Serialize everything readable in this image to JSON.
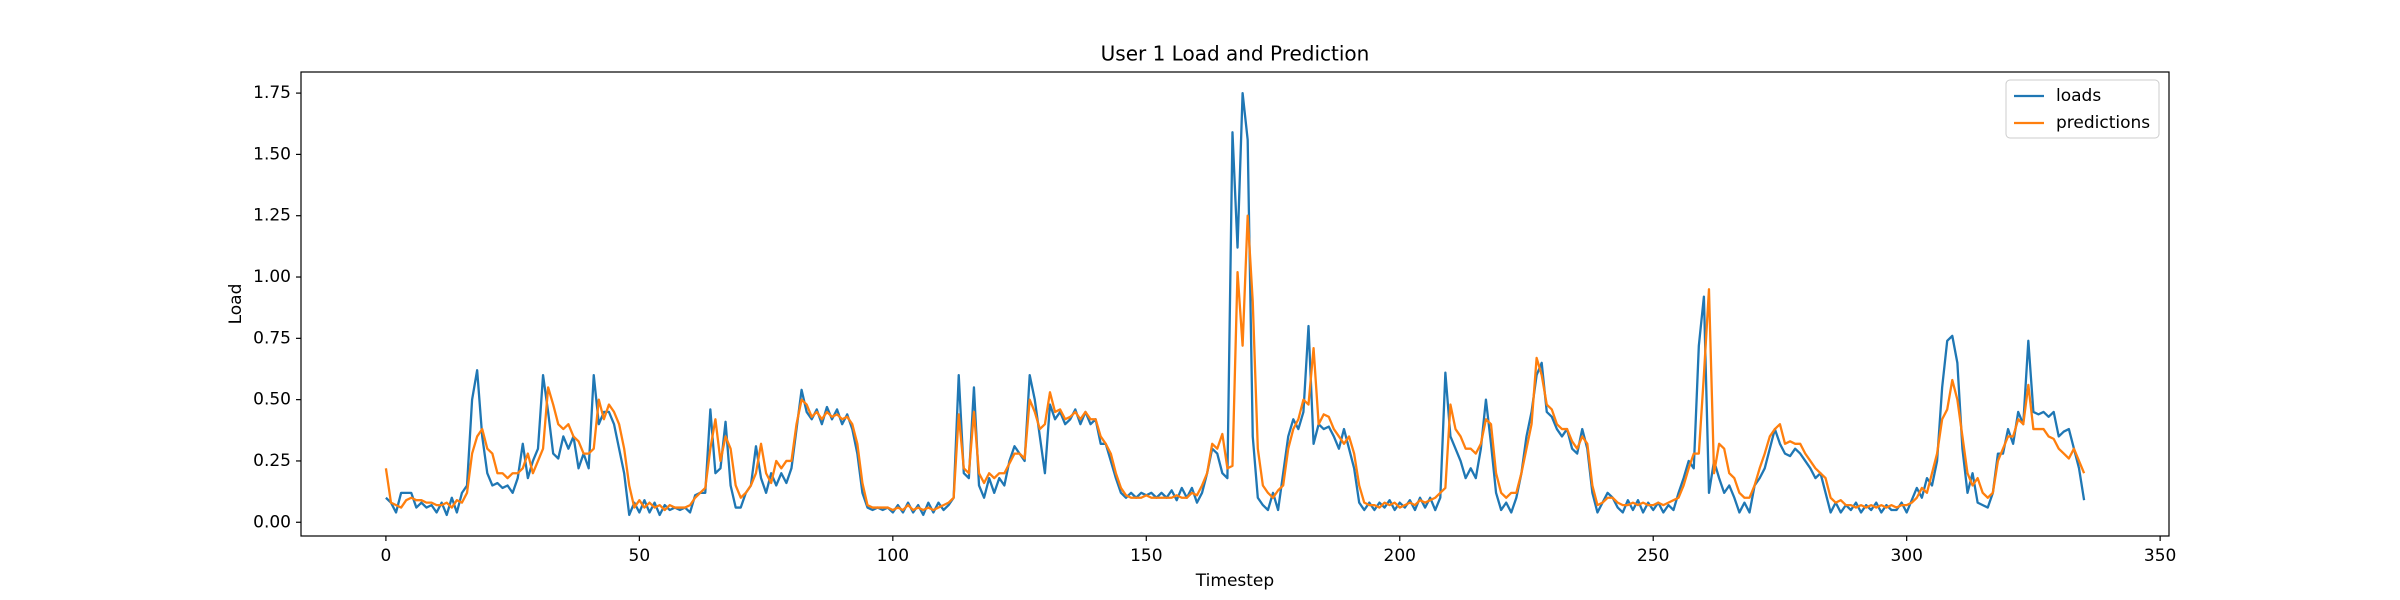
{
  "chart_data": {
    "type": "line",
    "title": "User 1 Load and Prediction",
    "x_label": "Timestep",
    "y_label": "Load",
    "xlim": [
      -16.75,
      351.75
    ],
    "ylim": [
      -0.056,
      1.836
    ],
    "xticks": [
      0,
      50,
      100,
      150,
      200,
      250,
      300,
      350
    ],
    "yticks": [
      {
        "value": 0,
        "label": "0.00"
      },
      {
        "value": 0.25,
        "label": "0.25"
      },
      {
        "value": 0.5,
        "label": "0.50"
      },
      {
        "value": 0.75,
        "label": "0.75"
      },
      {
        "value": 1,
        "label": "1.00"
      },
      {
        "value": 1.25,
        "label": "1.25"
      },
      {
        "value": 1.5,
        "label": "1.50"
      },
      {
        "value": 1.75,
        "label": "1.75"
      }
    ],
    "grid": false,
    "legend": "upper right",
    "x": [
      0,
      1,
      2,
      3,
      4,
      5,
      6,
      7,
      8,
      9,
      10,
      11,
      12,
      13,
      14,
      15,
      16,
      17,
      18,
      19,
      20,
      21,
      22,
      23,
      24,
      25,
      26,
      27,
      28,
      29,
      30,
      31,
      32,
      33,
      34,
      35,
      36,
      37,
      38,
      39,
      40,
      41,
      42,
      43,
      44,
      45,
      46,
      47,
      48,
      49,
      50,
      51,
      52,
      53,
      54,
      55,
      56,
      57,
      58,
      59,
      60,
      61,
      62,
      63,
      64,
      65,
      66,
      67,
      68,
      69,
      70,
      71,
      72,
      73,
      74,
      75,
      76,
      77,
      78,
      79,
      80,
      81,
      82,
      83,
      84,
      85,
      86,
      87,
      88,
      89,
      90,
      91,
      92,
      93,
      94,
      95,
      96,
      97,
      98,
      99,
      100,
      101,
      102,
      103,
      104,
      105,
      106,
      107,
      108,
      109,
      110,
      111,
      112,
      113,
      114,
      115,
      116,
      117,
      118,
      119,
      120,
      121,
      122,
      123,
      124,
      125,
      126,
      127,
      128,
      129,
      130,
      131,
      132,
      133,
      134,
      135,
      136,
      137,
      138,
      139,
      140,
      141,
      142,
      143,
      144,
      145,
      146,
      147,
      148,
      149,
      150,
      151,
      152,
      153,
      154,
      155,
      156,
      157,
      158,
      159,
      160,
      161,
      162,
      163,
      164,
      165,
      166,
      167,
      168,
      169,
      170,
      171,
      172,
      173,
      174,
      175,
      176,
      177,
      178,
      179,
      180,
      181,
      182,
      183,
      184,
      185,
      186,
      187,
      188,
      189,
      190,
      191,
      192,
      193,
      194,
      195,
      196,
      197,
      198,
      199,
      200,
      201,
      202,
      203,
      204,
      205,
      206,
      207,
      208,
      209,
      210,
      211,
      212,
      213,
      214,
      215,
      216,
      217,
      218,
      219,
      220,
      221,
      222,
      223,
      224,
      225,
      226,
      227,
      228,
      229,
      230,
      231,
      232,
      233,
      234,
      235,
      236,
      237,
      238,
      239,
      240,
      241,
      242,
      243,
      244,
      245,
      246,
      247,
      248,
      249,
      250,
      251,
      252,
      253,
      254,
      255,
      256,
      257,
      258,
      259,
      260,
      261,
      262,
      263,
      264,
      265,
      266,
      267,
      268,
      269,
      270,
      271,
      272,
      273,
      274,
      275,
      276,
      277,
      278,
      279,
      280,
      281,
      282,
      283,
      284,
      285,
      286,
      287,
      288,
      289,
      290,
      291,
      292,
      293,
      294,
      295,
      296,
      297,
      298,
      299,
      300,
      301,
      302,
      303,
      304,
      305,
      306,
      307,
      308,
      309,
      310,
      311,
      312,
      313,
      314,
      315,
      316,
      317,
      318,
      319,
      320,
      321,
      322,
      323,
      324,
      325,
      326,
      327,
      328,
      329,
      330,
      331,
      332,
      333,
      334,
      335
    ],
    "series": [
      {
        "name": "loads",
        "color": "#1f77b4",
        "values": [
          0.1,
          0.08,
          0.04,
          0.12,
          0.12,
          0.12,
          0.06,
          0.08,
          0.06,
          0.07,
          0.04,
          0.08,
          0.03,
          0.1,
          0.04,
          0.12,
          0.15,
          0.5,
          0.62,
          0.35,
          0.2,
          0.15,
          0.16,
          0.14,
          0.15,
          0.12,
          0.18,
          0.32,
          0.18,
          0.25,
          0.3,
          0.6,
          0.45,
          0.28,
          0.26,
          0.35,
          0.3,
          0.35,
          0.22,
          0.28,
          0.22,
          0.6,
          0.4,
          0.45,
          0.45,
          0.4,
          0.3,
          0.2,
          0.03,
          0.08,
          0.04,
          0.09,
          0.04,
          0.08,
          0.03,
          0.07,
          0.05,
          0.06,
          0.05,
          0.06,
          0.04,
          0.11,
          0.12,
          0.12,
          0.46,
          0.2,
          0.22,
          0.41,
          0.15,
          0.06,
          0.06,
          0.12,
          0.15,
          0.31,
          0.18,
          0.12,
          0.2,
          0.15,
          0.2,
          0.16,
          0.22,
          0.38,
          0.54,
          0.45,
          0.42,
          0.46,
          0.4,
          0.47,
          0.42,
          0.46,
          0.4,
          0.44,
          0.38,
          0.28,
          0.12,
          0.06,
          0.05,
          0.06,
          0.05,
          0.06,
          0.04,
          0.07,
          0.04,
          0.08,
          0.04,
          0.07,
          0.03,
          0.08,
          0.04,
          0.08,
          0.05,
          0.07,
          0.1,
          0.6,
          0.2,
          0.18,
          0.55,
          0.15,
          0.1,
          0.18,
          0.12,
          0.18,
          0.15,
          0.25,
          0.31,
          0.28,
          0.25,
          0.6,
          0.5,
          0.35,
          0.2,
          0.48,
          0.42,
          0.45,
          0.4,
          0.42,
          0.46,
          0.4,
          0.45,
          0.4,
          0.42,
          0.32,
          0.32,
          0.25,
          0.18,
          0.12,
          0.1,
          0.12,
          0.1,
          0.12,
          0.11,
          0.12,
          0.1,
          0.12,
          0.1,
          0.13,
          0.09,
          0.14,
          0.1,
          0.14,
          0.08,
          0.12,
          0.2,
          0.3,
          0.28,
          0.2,
          0.18,
          1.59,
          1.12,
          1.75,
          1.56,
          0.35,
          0.1,
          0.07,
          0.05,
          0.12,
          0.05,
          0.2,
          0.35,
          0.42,
          0.38,
          0.45,
          0.8,
          0.32,
          0.4,
          0.38,
          0.39,
          0.35,
          0.3,
          0.38,
          0.3,
          0.22,
          0.08,
          0.05,
          0.08,
          0.05,
          0.08,
          0.06,
          0.09,
          0.05,
          0.08,
          0.06,
          0.09,
          0.05,
          0.1,
          0.06,
          0.1,
          0.05,
          0.1,
          0.61,
          0.35,
          0.3,
          0.25,
          0.18,
          0.22,
          0.18,
          0.3,
          0.5,
          0.32,
          0.12,
          0.05,
          0.08,
          0.04,
          0.1,
          0.2,
          0.35,
          0.45,
          0.6,
          0.65,
          0.45,
          0.43,
          0.38,
          0.35,
          0.38,
          0.3,
          0.28,
          0.38,
          0.3,
          0.12,
          0.04,
          0.08,
          0.12,
          0.1,
          0.06,
          0.04,
          0.09,
          0.05,
          0.09,
          0.04,
          0.08,
          0.05,
          0.08,
          0.04,
          0.07,
          0.05,
          0.12,
          0.18,
          0.25,
          0.22,
          0.72,
          0.92,
          0.12,
          0.25,
          0.18,
          0.12,
          0.15,
          0.1,
          0.04,
          0.08,
          0.04,
          0.15,
          0.18,
          0.22,
          0.3,
          0.38,
          0.32,
          0.28,
          0.27,
          0.3,
          0.28,
          0.25,
          0.22,
          0.18,
          0.2,
          0.12,
          0.04,
          0.08,
          0.04,
          0.07,
          0.05,
          0.08,
          0.04,
          0.07,
          0.05,
          0.08,
          0.04,
          0.07,
          0.05,
          0.05,
          0.08,
          0.04,
          0.09,
          0.14,
          0.1,
          0.18,
          0.15,
          0.25,
          0.55,
          0.74,
          0.76,
          0.65,
          0.3,
          0.12,
          0.2,
          0.08,
          0.07,
          0.06,
          0.12,
          0.28,
          0.28,
          0.38,
          0.32,
          0.45,
          0.4,
          0.74,
          0.45,
          0.44,
          0.45,
          0.43,
          0.45,
          0.35,
          0.37,
          0.38,
          0.3,
          0.22,
          0.09
        ]
      },
      {
        "name": "predictions",
        "color": "#ff7f0e",
        "values": [
          0.22,
          0.08,
          0.07,
          0.06,
          0.09,
          0.1,
          0.09,
          0.09,
          0.08,
          0.08,
          0.07,
          0.07,
          0.08,
          0.06,
          0.09,
          0.08,
          0.12,
          0.28,
          0.35,
          0.38,
          0.3,
          0.28,
          0.2,
          0.2,
          0.18,
          0.2,
          0.2,
          0.22,
          0.28,
          0.2,
          0.25,
          0.3,
          0.55,
          0.48,
          0.4,
          0.38,
          0.4,
          0.35,
          0.33,
          0.28,
          0.28,
          0.3,
          0.5,
          0.42,
          0.48,
          0.45,
          0.4,
          0.3,
          0.15,
          0.06,
          0.09,
          0.06,
          0.08,
          0.06,
          0.07,
          0.05,
          0.07,
          0.06,
          0.06,
          0.06,
          0.07,
          0.1,
          0.12,
          0.14,
          0.3,
          0.42,
          0.25,
          0.35,
          0.3,
          0.15,
          0.1,
          0.12,
          0.15,
          0.2,
          0.32,
          0.2,
          0.16,
          0.25,
          0.22,
          0.25,
          0.25,
          0.4,
          0.5,
          0.48,
          0.43,
          0.45,
          0.42,
          0.45,
          0.43,
          0.44,
          0.42,
          0.43,
          0.4,
          0.32,
          0.16,
          0.07,
          0.06,
          0.06,
          0.06,
          0.06,
          0.05,
          0.06,
          0.05,
          0.07,
          0.05,
          0.06,
          0.05,
          0.06,
          0.05,
          0.06,
          0.07,
          0.08,
          0.1,
          0.44,
          0.22,
          0.2,
          0.45,
          0.2,
          0.16,
          0.2,
          0.18,
          0.2,
          0.2,
          0.24,
          0.28,
          0.28,
          0.26,
          0.5,
          0.45,
          0.38,
          0.4,
          0.53,
          0.45,
          0.46,
          0.42,
          0.43,
          0.45,
          0.42,
          0.45,
          0.42,
          0.42,
          0.35,
          0.32,
          0.28,
          0.2,
          0.14,
          0.11,
          0.1,
          0.1,
          0.1,
          0.11,
          0.1,
          0.1,
          0.1,
          0.1,
          0.1,
          0.11,
          0.1,
          0.1,
          0.12,
          0.11,
          0.15,
          0.2,
          0.32,
          0.3,
          0.36,
          0.22,
          0.23,
          1.02,
          0.72,
          1.25,
          0.9,
          0.3,
          0.15,
          0.12,
          0.1,
          0.13,
          0.15,
          0.3,
          0.38,
          0.42,
          0.5,
          0.48,
          0.71,
          0.4,
          0.44,
          0.43,
          0.38,
          0.35,
          0.32,
          0.35,
          0.28,
          0.15,
          0.08,
          0.07,
          0.07,
          0.06,
          0.08,
          0.07,
          0.08,
          0.06,
          0.07,
          0.08,
          0.07,
          0.09,
          0.08,
          0.09,
          0.1,
          0.12,
          0.14,
          0.48,
          0.38,
          0.35,
          0.3,
          0.3,
          0.28,
          0.32,
          0.42,
          0.4,
          0.2,
          0.12,
          0.1,
          0.12,
          0.12,
          0.2,
          0.3,
          0.4,
          0.67,
          0.6,
          0.48,
          0.46,
          0.4,
          0.38,
          0.38,
          0.33,
          0.3,
          0.35,
          0.32,
          0.15,
          0.07,
          0.08,
          0.1,
          0.1,
          0.08,
          0.07,
          0.07,
          0.08,
          0.07,
          0.08,
          0.07,
          0.07,
          0.08,
          0.07,
          0.08,
          0.09,
          0.1,
          0.15,
          0.22,
          0.28,
          0.28,
          0.6,
          0.95,
          0.2,
          0.32,
          0.3,
          0.2,
          0.18,
          0.12,
          0.1,
          0.1,
          0.15,
          0.22,
          0.28,
          0.35,
          0.38,
          0.4,
          0.32,
          0.33,
          0.32,
          0.32,
          0.28,
          0.25,
          0.22,
          0.2,
          0.18,
          0.1,
          0.08,
          0.09,
          0.07,
          0.07,
          0.06,
          0.07,
          0.06,
          0.07,
          0.06,
          0.07,
          0.06,
          0.07,
          0.06,
          0.07,
          0.07,
          0.08,
          0.1,
          0.14,
          0.12,
          0.2,
          0.28,
          0.42,
          0.46,
          0.58,
          0.5,
          0.35,
          0.2,
          0.15,
          0.18,
          0.12,
          0.1,
          0.12,
          0.25,
          0.3,
          0.35,
          0.35,
          0.42,
          0.4,
          0.56,
          0.38,
          0.38,
          0.38,
          0.35,
          0.34,
          0.3,
          0.28,
          0.26,
          0.3,
          0.25,
          0.2
        ]
      }
    ]
  }
}
